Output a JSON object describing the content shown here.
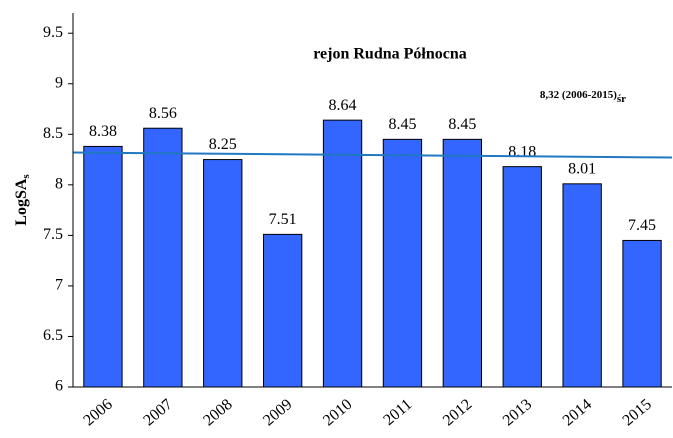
{
  "chart_data": {
    "type": "bar",
    "title": "rejon Rudna Północna",
    "ylabel": "LogSA",
    "ylabel_subscript": "s",
    "categories": [
      "2006",
      "2007",
      "2008",
      "2009",
      "2010",
      "2011",
      "2012",
      "2013",
      "2014",
      "2015"
    ],
    "values": [
      8.38,
      8.56,
      8.25,
      7.51,
      8.64,
      8.45,
      8.45,
      8.18,
      8.01,
      7.45
    ],
    "color": "#3366ff",
    "ylim": [
      6,
      9.7
    ],
    "yticks": [
      6,
      6.5,
      7,
      7.5,
      8,
      8.5,
      9,
      9.5
    ],
    "trendline": {
      "values": [
        8.32,
        8.27
      ],
      "color": "#1f78c1"
    },
    "annotation": {
      "text": "8,32 (2006-2015)",
      "subscript": "śr",
      "color": "#1f78c1"
    }
  }
}
